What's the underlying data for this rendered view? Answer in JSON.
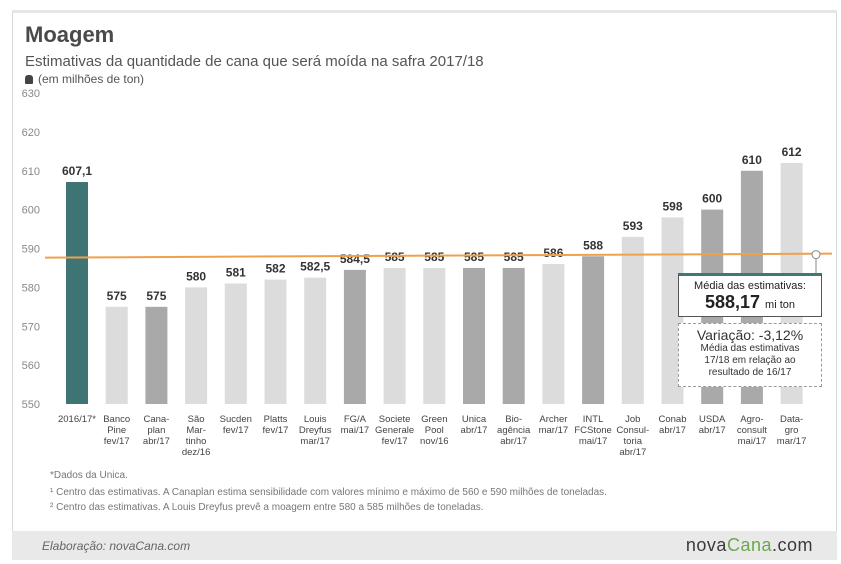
{
  "title": "Moagem",
  "subtitle": "Estimativas da quantidade de cana que será moída na safra 2017/18",
  "unit_label": "(em milhões de ton)",
  "colors": {
    "first_bar": "#3f7474",
    "dark_bar": "#a9a9a9",
    "light_bar": "#dcdcdc",
    "avg_line": "#f0a04b",
    "box_top": "#3b7a78"
  },
  "chart_data": {
    "type": "bar",
    "ylim": [
      550,
      630
    ],
    "yticks": [
      550,
      560,
      570,
      580,
      590,
      600,
      610,
      620,
      630
    ],
    "grid": false,
    "average": 588.17,
    "bars": [
      {
        "name": [
          "2016/17*"
        ],
        "value": 607.1,
        "label": "607,1",
        "shade": "first"
      },
      {
        "name": [
          "Banco",
          "Pine",
          "fev/17"
        ],
        "value": 575,
        "label": "575",
        "shade": "light"
      },
      {
        "name": [
          "Cana-",
          "plan",
          "abr/17"
        ],
        "value": 575,
        "label": "575",
        "shade": "dark"
      },
      {
        "name": [
          "São",
          "Mar-",
          "tinho",
          "dez/16"
        ],
        "value": 580,
        "label": "580",
        "shade": "light"
      },
      {
        "name": [
          "Sucden",
          "fev/17"
        ],
        "value": 581,
        "label": "581",
        "shade": "light"
      },
      {
        "name": [
          "Platts",
          "fev/17"
        ],
        "value": 582,
        "label": "582",
        "shade": "light"
      },
      {
        "name": [
          "Louis",
          "Dreyfus",
          "mar/17"
        ],
        "value": 582.5,
        "label": "582,5",
        "shade": "light"
      },
      {
        "name": [
          "FG/A",
          "mai/17"
        ],
        "value": 584.5,
        "label": "584,5",
        "shade": "dark"
      },
      {
        "name": [
          "Societe",
          "Generale",
          "fev/17"
        ],
        "value": 585,
        "label": "585",
        "shade": "light"
      },
      {
        "name": [
          "Green",
          "Pool",
          "nov/16"
        ],
        "value": 585,
        "label": "585",
        "shade": "light"
      },
      {
        "name": [
          "Unica",
          "abr/17"
        ],
        "value": 585,
        "label": "585",
        "shade": "dark"
      },
      {
        "name": [
          "Bio-",
          "agência",
          "abr/17"
        ],
        "value": 585,
        "label": "585",
        "shade": "dark"
      },
      {
        "name": [
          "Archer",
          "mar/17"
        ],
        "value": 586,
        "label": "586",
        "shade": "light"
      },
      {
        "name": [
          "INTL",
          "FCStone",
          "mai/17"
        ],
        "value": 588,
        "label": "588",
        "shade": "dark"
      },
      {
        "name": [
          "Job",
          "Consul-",
          "toria",
          "abr/17"
        ],
        "value": 593,
        "label": "593",
        "shade": "light"
      },
      {
        "name": [
          "Conab",
          "abr/17"
        ],
        "value": 598,
        "label": "598",
        "shade": "light"
      },
      {
        "name": [
          "USDA",
          "abr/17"
        ],
        "value": 600,
        "label": "600",
        "shade": "dark"
      },
      {
        "name": [
          "Agro-",
          "consult",
          "mai/17"
        ],
        "value": 610,
        "label": "610",
        "shade": "dark"
      },
      {
        "name": [
          "Data-",
          "gro",
          "mar/17"
        ],
        "value": 612,
        "label": "612",
        "shade": "light"
      }
    ]
  },
  "media_box": {
    "label": "Média das estimativas:",
    "value": "588,17",
    "unit": "mi ton"
  },
  "variation_box": {
    "heading": "Variação: -3,12%",
    "line1": "Média das estimativas",
    "line2": "17/18 em relação ao",
    "line3": "resultado de 16/17"
  },
  "notes": {
    "n1": "*Dados da Unica.",
    "n2": "¹ Centro das estimativas. A Canaplan estima sensibilidade com valores mínimo e máximo de 560 e 590 milhões de toneladas.",
    "n3": "² Centro das estimativas. A Louis Dreyfus prevê a moagem entre 580 a 585 milhões de toneladas."
  },
  "footer": {
    "credit": "Elaboração: novaCana.com",
    "brand_a": "nova",
    "brand_b": "Cana",
    "brand_c": ".com"
  }
}
